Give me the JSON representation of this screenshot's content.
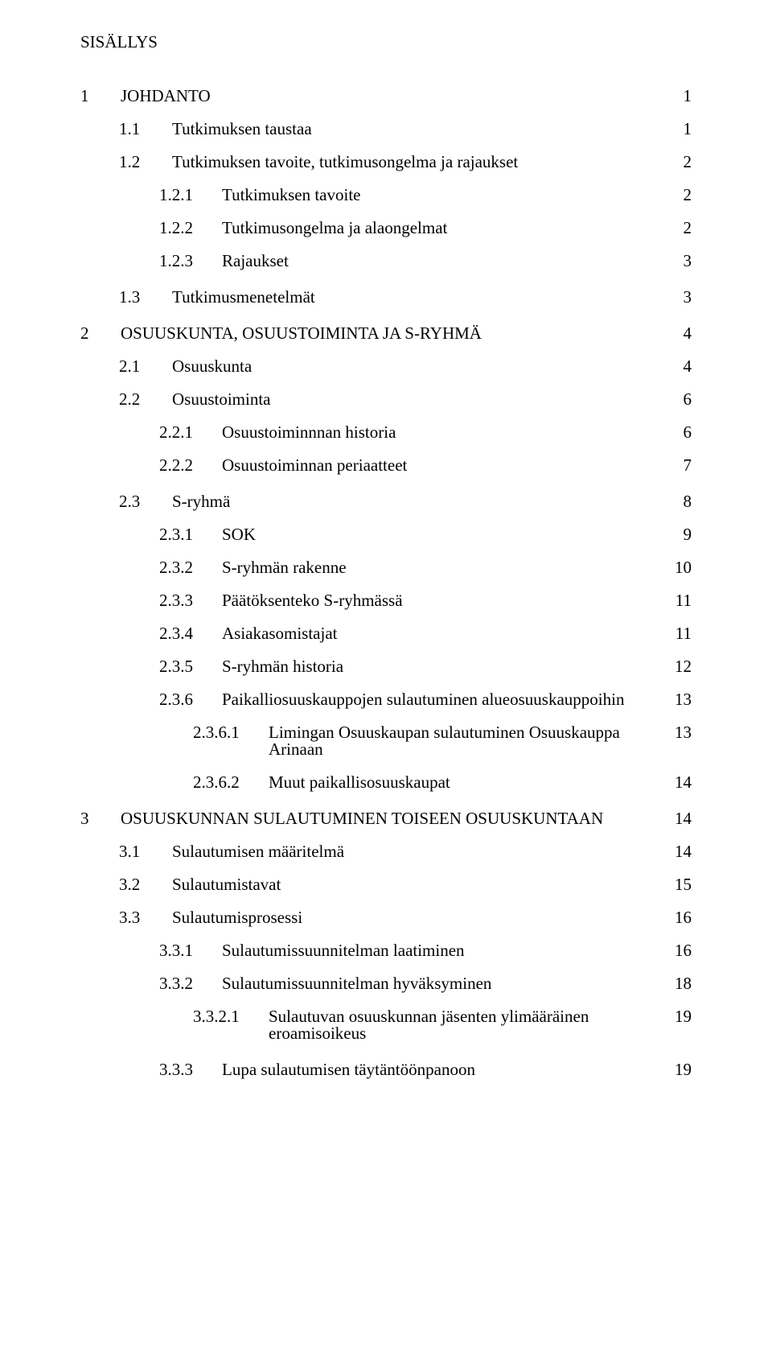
{
  "colors": {
    "background": "#ffffff",
    "text": "#000000"
  },
  "typography": {
    "font_family": "Times New Roman",
    "base_size_pt": 16
  },
  "page_title": "SISÄLLYS",
  "toc": [
    {
      "level": 0,
      "num": "1",
      "label": "JOHDANTO",
      "page": "1"
    },
    {
      "level": 1,
      "num": "1.1",
      "label": "Tutkimuksen taustaa",
      "page": "1"
    },
    {
      "level": 1,
      "num": "1.2",
      "label": "Tutkimuksen tavoite, tutkimusongelma ja rajaukset",
      "page": "2"
    },
    {
      "level": 2,
      "num": "1.2.1",
      "label": "Tutkimuksen tavoite",
      "page": "2"
    },
    {
      "level": 2,
      "num": "1.2.2",
      "label": "Tutkimusongelma ja alaongelmat",
      "page": "2"
    },
    {
      "level": 2,
      "num": "1.2.3",
      "label": "Rajaukset",
      "page": "3"
    },
    {
      "level": 1,
      "num": "1.3",
      "label": "Tutkimusmenetelmät",
      "page": "3"
    },
    {
      "level": 0,
      "num": "2",
      "label": "OSUUSKUNTA, OSUUSTOIMINTA JA S-RYHMÄ",
      "page": "4"
    },
    {
      "level": 1,
      "num": "2.1",
      "label": "Osuuskunta",
      "page": "4"
    },
    {
      "level": 1,
      "num": "2.2",
      "label": "Osuustoiminta",
      "page": "6"
    },
    {
      "level": 2,
      "num": "2.2.1",
      "label": "Osuustoiminnnan historia",
      "page": "6"
    },
    {
      "level": 2,
      "num": "2.2.2",
      "label": "Osuustoiminnan periaatteet",
      "page": "7"
    },
    {
      "level": 1,
      "num": "2.3",
      "label": "S-ryhmä",
      "page": "8"
    },
    {
      "level": 2,
      "num": "2.3.1",
      "label": "SOK",
      "page": "9"
    },
    {
      "level": 2,
      "num": "2.3.2",
      "label": "S-ryhmän rakenne",
      "page": "10"
    },
    {
      "level": 2,
      "num": "2.3.3",
      "label": "Päätöksenteko S-ryhmässä",
      "page": "11"
    },
    {
      "level": 2,
      "num": "2.3.4",
      "label": "Asiakasomistajat",
      "page": "11"
    },
    {
      "level": 2,
      "num": "2.3.5",
      "label": "S-ryhmän historia",
      "page": "12"
    },
    {
      "level": 2,
      "num": "2.3.6",
      "label": "Paikalliosuuskauppojen sulautuminen alueosuuskauppoihin",
      "page": "13"
    },
    {
      "level": 3,
      "num": "2.3.6.1",
      "label": "Limingan Osuuskaupan sulautuminen Osuuskauppa Arinaan",
      "page": "13"
    },
    {
      "level": 3,
      "num": "2.3.6.2",
      "label": "Muut paikallisosuuskaupat",
      "page": "14"
    },
    {
      "level": 0,
      "num": "3",
      "label": "OSUUSKUNNAN SULAUTUMINEN TOISEEN OSUUSKUNTAAN",
      "page": "14"
    },
    {
      "level": 1,
      "num": "3.1",
      "label": "Sulautumisen määritelmä",
      "page": "14"
    },
    {
      "level": 1,
      "num": "3.2",
      "label": "Sulautumistavat",
      "page": "15"
    },
    {
      "level": 1,
      "num": "3.3",
      "label": "Sulautumisprosessi",
      "page": "16"
    },
    {
      "level": 2,
      "num": "3.3.1",
      "label": "Sulautumissuunnitelman laatiminen",
      "page": "16"
    },
    {
      "level": 2,
      "num": "3.3.2",
      "label": "Sulautumissuunnitelman hyväksyminen",
      "page": "18"
    },
    {
      "level": 3,
      "num": "3.3.2.1",
      "label": "Sulautuvan osuuskunnan jäsenten ylimääräinen eroamisoikeus",
      "page": "19"
    },
    {
      "level": 2,
      "num": "3.3.3",
      "label": "Lupa sulautumisen täytäntöönpanoon",
      "page": "19"
    }
  ]
}
